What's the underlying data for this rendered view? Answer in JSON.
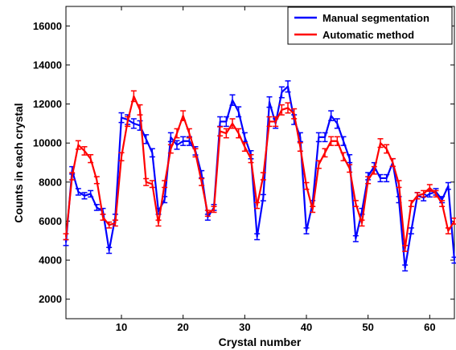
{
  "chart_data": {
    "type": "line",
    "xlabel": "Crystal number",
    "ylabel": "Counts in each crystal",
    "xlim": [
      1,
      64
    ],
    "ylim": [
      1000,
      17000
    ],
    "xticks": [
      10,
      20,
      30,
      40,
      50,
      60
    ],
    "yticks": [
      2000,
      4000,
      6000,
      8000,
      10000,
      12000,
      14000,
      16000
    ],
    "grid": false,
    "legend_position": "top-right",
    "x": [
      1,
      2,
      3,
      4,
      5,
      6,
      7,
      8,
      9,
      10,
      11,
      12,
      13,
      14,
      15,
      16,
      17,
      18,
      19,
      20,
      21,
      22,
      23,
      24,
      25,
      26,
      27,
      28,
      29,
      30,
      31,
      32,
      33,
      34,
      35,
      36,
      37,
      38,
      39,
      40,
      41,
      42,
      43,
      44,
      45,
      46,
      47,
      48,
      49,
      50,
      51,
      52,
      53,
      54,
      55,
      56,
      57,
      58,
      59,
      60,
      61,
      62,
      63,
      64
    ],
    "series": [
      {
        "name": "Manual segmentation",
        "color": "#0000ff",
        "values": [
          4900,
          8600,
          7500,
          7300,
          7400,
          6700,
          6500,
          4500,
          6200,
          11300,
          11200,
          11000,
          10900,
          10200,
          9500,
          6500,
          7100,
          10300,
          9900,
          10100,
          10100,
          9600,
          8400,
          6200,
          6700,
          11100,
          11100,
          12200,
          11600,
          10300,
          9400,
          5200,
          7200,
          12100,
          11000,
          12600,
          12900,
          11200,
          10300,
          5500,
          6900,
          10300,
          10300,
          11400,
          11000,
          10100,
          9200,
          5100,
          6500,
          8300,
          8800,
          8200,
          8200,
          9000,
          7100,
          3600,
          5500,
          7300,
          7200,
          7400,
          7500,
          7100,
          7800,
          4000
        ]
      },
      {
        "name": "Automatic method",
        "color": "#ff0000",
        "values": [
          5200,
          8300,
          9900,
          9600,
          9200,
          8100,
          6200,
          5800,
          5900,
          9300,
          11100,
          12400,
          11700,
          8000,
          7900,
          5900,
          7900,
          9700,
          10500,
          11400,
          10500,
          9500,
          8000,
          6400,
          6600,
          10600,
          10500,
          11000,
          10500,
          9800,
          9200,
          6800,
          8300,
          11100,
          11100,
          11700,
          11800,
          11500,
          9800,
          7800,
          6600,
          8900,
          9500,
          10100,
          10100,
          9300,
          8700,
          6900,
          5900,
          8100,
          8600,
          10000,
          9700,
          9000,
          7900,
          4600,
          6900,
          7300,
          7400,
          7700,
          7400,
          6900,
          5500,
          6000
        ]
      }
    ]
  }
}
